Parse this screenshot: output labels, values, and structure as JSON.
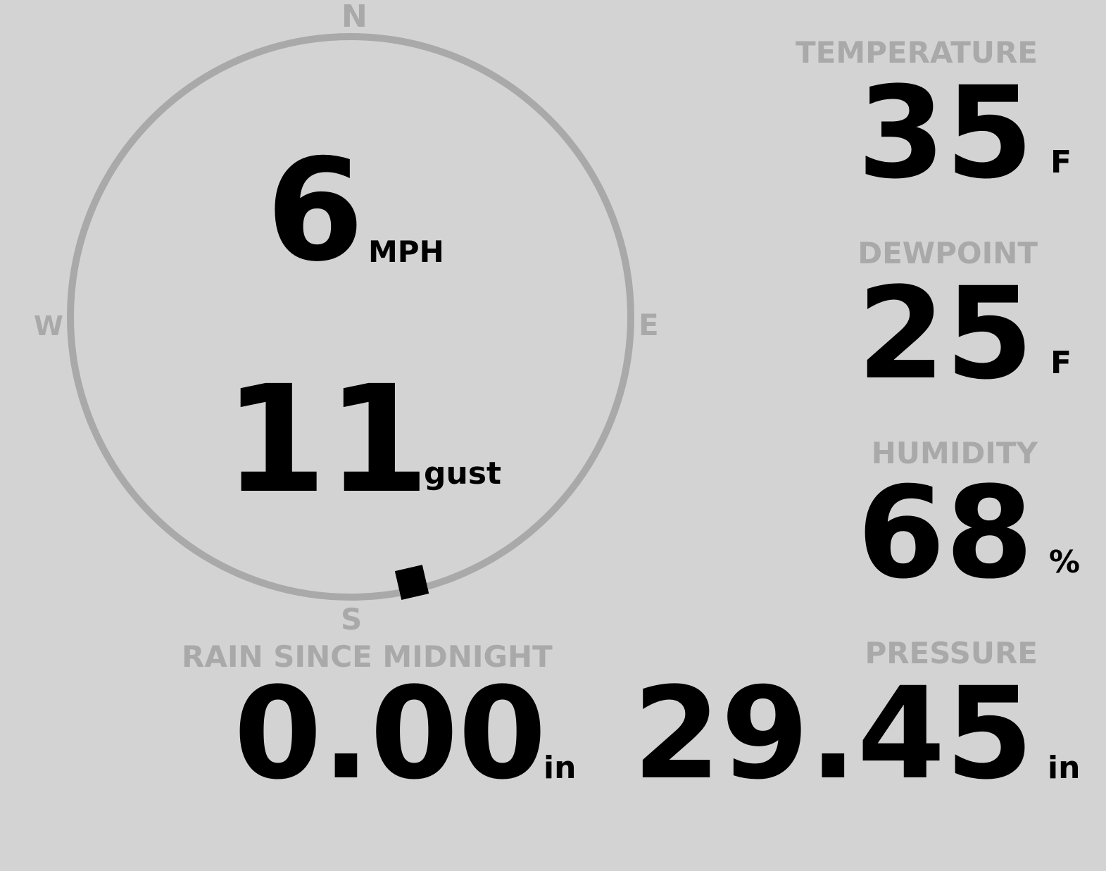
{
  "wind": {
    "speed": "6",
    "speed_unit": "MPH",
    "gust": "11",
    "gust_label": "gust",
    "direction_degrees": 167,
    "cardinals": {
      "n": "N",
      "e": "E",
      "s": "S",
      "w": "W"
    }
  },
  "temperature": {
    "label": "TEMPERATURE",
    "value": "35",
    "unit": "F"
  },
  "dewpoint": {
    "label": "DEWPOINT",
    "value": "25",
    "unit": "F"
  },
  "humidity": {
    "label": "HUMIDITY",
    "value": "68",
    "unit": "%"
  },
  "pressure": {
    "label": "PRESSURE",
    "value": "29.45",
    "unit": "in"
  },
  "rain": {
    "label": "RAIN SINCE MIDNIGHT",
    "value": "0.00",
    "unit": "in"
  },
  "colors": {
    "background": "#d3d3d3",
    "muted": "#a9a9a9",
    "text": "#000000"
  }
}
